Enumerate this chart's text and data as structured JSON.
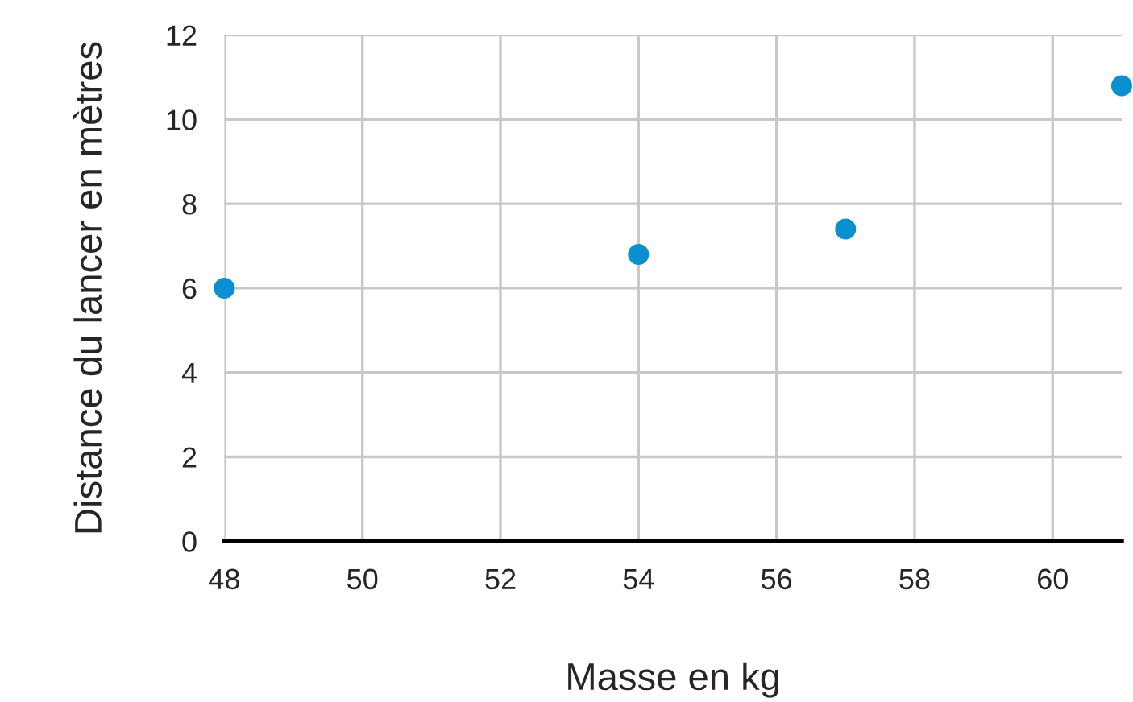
{
  "chart_data": {
    "type": "scatter",
    "xlabel": "Masse en kg",
    "ylabel": "Distance du lancer en mètres",
    "x": [
      48,
      54,
      57,
      61
    ],
    "series": [
      {
        "color": "#0a8fd1",
        "values": [
          6,
          6.8,
          7.4,
          10.8
        ]
      }
    ],
    "xlim": [
      48,
      61
    ],
    "ylim": [
      0,
      12
    ],
    "xticks": [
      48,
      50,
      52,
      54,
      56,
      58,
      60
    ],
    "yticks": [
      0,
      2,
      4,
      6,
      8,
      10,
      12
    ],
    "grid": true,
    "legend": false,
    "marker": "circle"
  }
}
